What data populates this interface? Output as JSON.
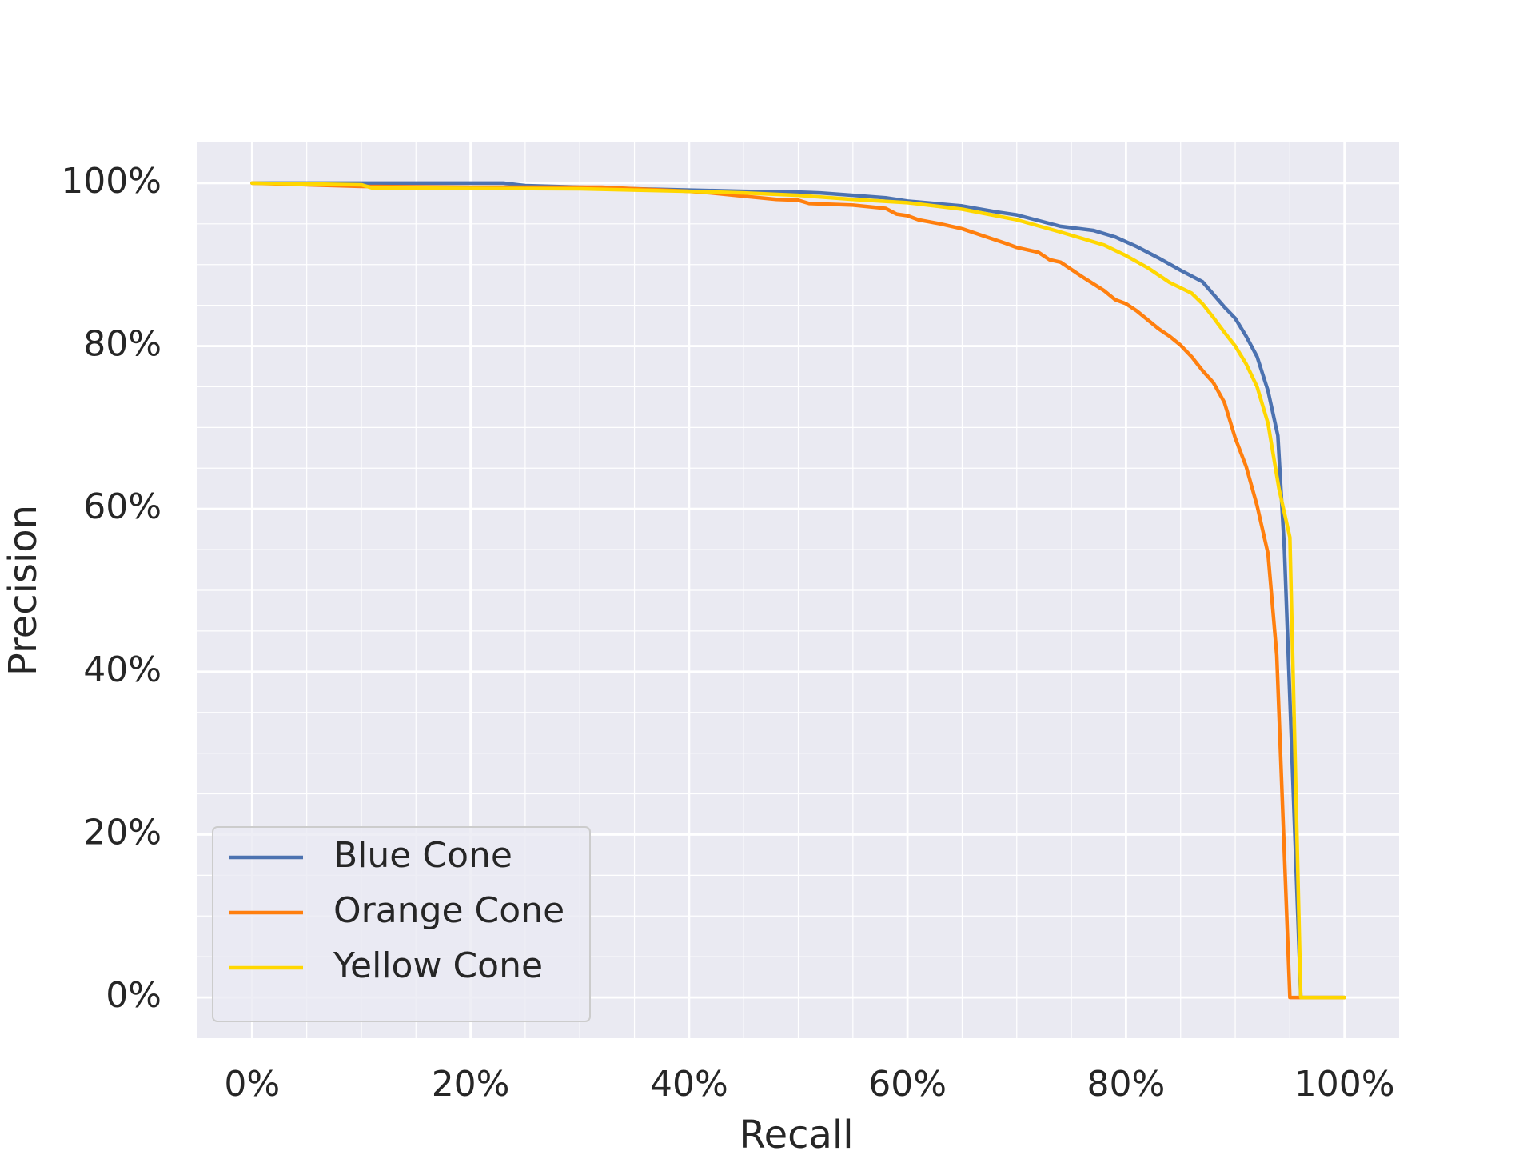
{
  "chart_data": {
    "type": "line",
    "x_label": "Recall",
    "y_label": "Precision",
    "xlim": [
      -5,
      105
    ],
    "ylim": [
      -5,
      105
    ],
    "xticks": [
      {
        "value": 0,
        "label": "0%"
      },
      {
        "value": 20,
        "label": "20%"
      },
      {
        "value": 40,
        "label": "40%"
      },
      {
        "value": 60,
        "label": "60%"
      },
      {
        "value": 80,
        "label": "80%"
      },
      {
        "value": 100,
        "label": "100%"
      }
    ],
    "yticks": [
      {
        "value": 0,
        "label": "0%"
      },
      {
        "value": 20,
        "label": "20%"
      },
      {
        "value": 40,
        "label": "40%"
      },
      {
        "value": 60,
        "label": "60%"
      },
      {
        "value": 80,
        "label": "80%"
      },
      {
        "value": 100,
        "label": "100%"
      }
    ],
    "minor_xticks": [
      5,
      10,
      15,
      25,
      30,
      35,
      45,
      50,
      55,
      65,
      70,
      75,
      85,
      90,
      95
    ],
    "minor_yticks": [
      5,
      10,
      15,
      25,
      30,
      35,
      45,
      50,
      55,
      65,
      70,
      75,
      85,
      90,
      95
    ],
    "grid": true,
    "background": "#eaeaf2",
    "legend": "lower left",
    "series": [
      {
        "name": "Blue Cone",
        "color": "#4c72b0",
        "x": [
          0,
          23,
          25,
          35,
          45,
          50,
          52,
          55,
          58,
          60,
          65,
          68,
          70,
          72,
          74,
          77,
          79,
          81,
          83,
          85,
          87,
          89,
          90,
          91,
          92,
          93,
          93.9,
          94.5,
          96,
          100
        ],
        "values": [
          100,
          100,
          99.7,
          99.3,
          99,
          98.9,
          98.8,
          98.5,
          98.2,
          97.8,
          97.2,
          96.5,
          96.1,
          95.4,
          94.7,
          94.2,
          93.4,
          92.2,
          90.8,
          89.3,
          87.9,
          84.8,
          83.4,
          81.2,
          78.7,
          74.5,
          69,
          55,
          0,
          0
        ]
      },
      {
        "name": "Orange Cone",
        "color": "#ff7f0e",
        "x": [
          0,
          5,
          10,
          20,
          32,
          40,
          42,
          45,
          48,
          50,
          51,
          55,
          58,
          59,
          60,
          61,
          63,
          65,
          67,
          69,
          70,
          72,
          73,
          74,
          76,
          78,
          79,
          80,
          81,
          83,
          84,
          85,
          86,
          87,
          88,
          89,
          90,
          91,
          92,
          93,
          93.8,
          95,
          100
        ],
        "values": [
          100,
          99.8,
          99.6,
          99.5,
          99.5,
          99,
          98.8,
          98.4,
          98,
          97.9,
          97.5,
          97.3,
          96.9,
          96.2,
          96,
          95.5,
          95,
          94.4,
          93.5,
          92.6,
          92.1,
          91.5,
          90.6,
          90.3,
          88.5,
          86.8,
          85.7,
          85.2,
          84.3,
          82.1,
          81.2,
          80.1,
          78.7,
          77,
          75.5,
          73.1,
          68.7,
          65.2,
          60.4,
          54.5,
          42,
          0,
          0
        ]
      },
      {
        "name": "Yellow Cone",
        "color": "#ffd700",
        "x": [
          0,
          10,
          11,
          30,
          40,
          45,
          50,
          55,
          60,
          65,
          70,
          74,
          76,
          78,
          80,
          82,
          84,
          86,
          87,
          88,
          89,
          90,
          91,
          92,
          93,
          94,
          95,
          96,
          100
        ],
        "values": [
          100,
          99.8,
          99.4,
          99.3,
          99,
          98.8,
          98.5,
          98,
          97.6,
          96.8,
          95.5,
          94,
          93.2,
          92.4,
          91.1,
          89.6,
          87.8,
          86.5,
          85.2,
          83.5,
          81.7,
          80,
          77.8,
          75,
          70.5,
          62.5,
          56.5,
          0,
          0
        ]
      }
    ]
  }
}
